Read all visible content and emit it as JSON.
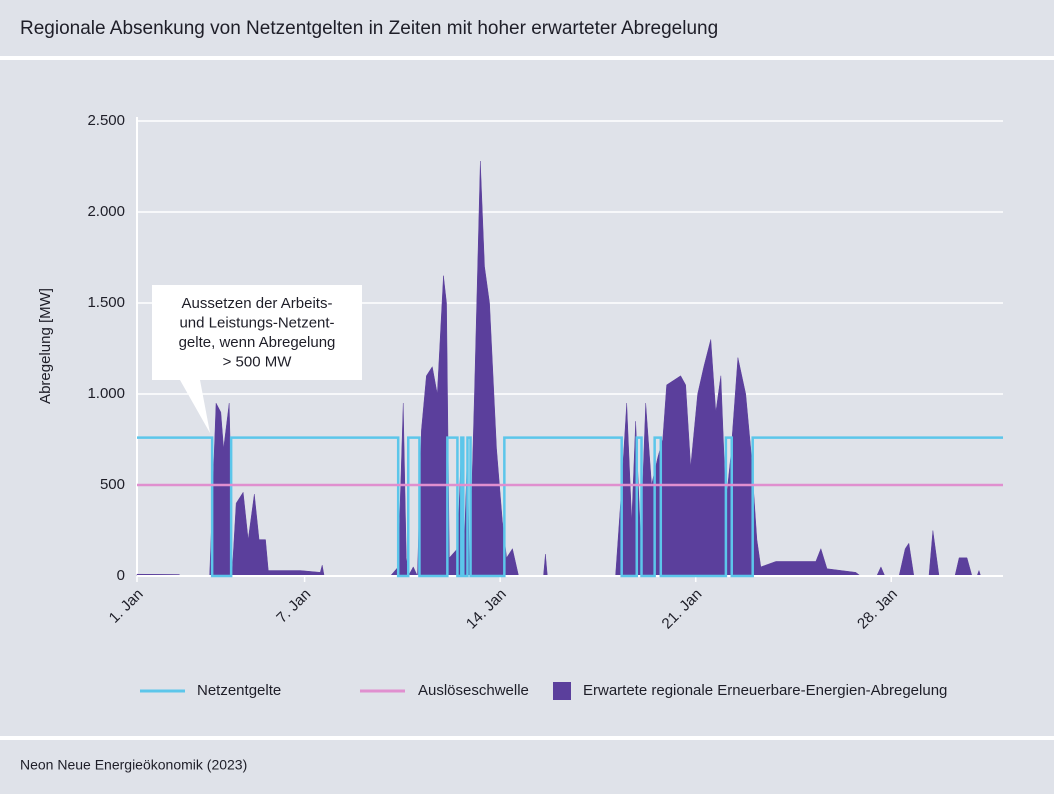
{
  "chart_data": {
    "type": "line",
    "title": "Regionale Absenkung von Netzentgelten in Zeiten mit hoher erwarteter Abregelung",
    "ylabel": "Abregelung [MW]",
    "source": "Neon Neue Energieökonomik (2023)",
    "annotation": [
      "Aussetzen der Arbeits-",
      "und Leistungs-Netzent-",
      "gelte, wenn Abregelung",
      "> 500 MW"
    ],
    "xlim": [
      0,
      31
    ],
    "xticks": [
      {
        "value": 0,
        "label": "1. Jan"
      },
      {
        "value": 6,
        "label": "7. Jan"
      },
      {
        "value": 13,
        "label": "14. Jan"
      },
      {
        "value": 20,
        "label": "21. Jan"
      },
      {
        "value": 27,
        "label": "28. Jan"
      }
    ],
    "ylim": [
      0,
      2500
    ],
    "yticks": [
      0,
      500,
      {
        "value": 1000,
        "label": "1.000"
      },
      {
        "value": 1500,
        "label": "1.500"
      },
      {
        "value": 2000,
        "label": "2.000"
      },
      {
        "value": 2500,
        "label": "2.500"
      }
    ],
    "grid": true,
    "legend": "bottom",
    "series": [
      {
        "name": "Netzentgelte",
        "type": "line",
        "color": "#5cc6ea",
        "x": [
          0,
          2.69,
          2.69,
          3.37,
          3.37,
          9.35,
          9.35,
          9.71,
          9.71,
          10.11,
          10.11,
          11.11,
          11.11,
          11.47,
          11.47,
          11.61,
          11.61,
          11.68,
          11.68,
          11.83,
          11.83,
          11.94,
          11.94,
          13.15,
          13.15,
          17.35,
          17.35,
          17.89,
          17.89,
          18.06,
          18.06,
          18.53,
          18.53,
          18.75,
          18.75,
          21.08,
          21.08,
          21.29,
          21.29,
          22.04,
          22.04,
          31
        ],
        "values": [
          760,
          760,
          0,
          0,
          760,
          760,
          0,
          0,
          760,
          760,
          0,
          0,
          760,
          760,
          0,
          0,
          760,
          760,
          0,
          0,
          760,
          760,
          0,
          0,
          760,
          760,
          0,
          0,
          760,
          760,
          0,
          0,
          760,
          760,
          0,
          0,
          760,
          760,
          0,
          0,
          760,
          760
        ]
      },
      {
        "name": "Auslöseschwelle",
        "type": "line",
        "color": "#e08fcf",
        "x": [
          0,
          31
        ],
        "values": [
          500,
          500
        ]
      },
      {
        "name": "Erwartete regionale Erneuerbare-Energien-Abregelung",
        "type": "area",
        "color": "#5b3f9c",
        "x": [
          0,
          1.5,
          1.6,
          2.6,
          2.83,
          3.0,
          3.1,
          3.3,
          3.37,
          3.4,
          3.55,
          3.8,
          3.98,
          4.2,
          4.37,
          4.6,
          4.7,
          5.85,
          6.56,
          6.63,
          6.7,
          9.07,
          9.35,
          9.53,
          9.64,
          9.71,
          9.89,
          10.04,
          10.18,
          10.36,
          10.57,
          10.75,
          10.97,
          11.08,
          11.18,
          11.47,
          11.61,
          11.68,
          11.83,
          11.9,
          12.08,
          12.29,
          12.44,
          12.62,
          12.87,
          13.08,
          13.23,
          13.44,
          13.66,
          14.55,
          14.62,
          14.69,
          17.13,
          17.31,
          17.53,
          17.71,
          17.85,
          18.03,
          18.21,
          18.42,
          18.64,
          18.82,
          18.96,
          19.46,
          19.64,
          19.82,
          20.07,
          20.29,
          20.54,
          20.72,
          20.9,
          21.08,
          21.25,
          21.51,
          21.79,
          21.97,
          22.19,
          22.33,
          22.87,
          24.3,
          24.48,
          24.7,
          25.73,
          25.9,
          26.48,
          26.63,
          26.77,
          27.28,
          27.5,
          27.63,
          27.81,
          28.35,
          28.49,
          28.71,
          29.28,
          29.43,
          29.71,
          29.89,
          30.07,
          30.14,
          30.2
        ],
        "values": [
          10,
          8,
          0,
          0,
          950,
          900,
          700,
          950,
          500,
          0,
          400,
          460,
          200,
          450,
          200,
          200,
          30,
          30,
          20,
          60,
          0,
          0,
          50,
          950,
          100,
          0,
          50,
          0,
          800,
          1100,
          1150,
          1000,
          1650,
          1500,
          100,
          150,
          700,
          0,
          700,
          0,
          1000,
          2280,
          1700,
          1500,
          700,
          300,
          100,
          150,
          0,
          0,
          120,
          0,
          0,
          400,
          950,
          300,
          850,
          200,
          950,
          500,
          650,
          750,
          1050,
          1100,
          1050,
          600,
          1000,
          1150,
          1300,
          900,
          1100,
          400,
          650,
          1200,
          1000,
          700,
          200,
          50,
          80,
          80,
          150,
          40,
          20,
          0,
          0,
          50,
          0,
          0,
          150,
          180,
          0,
          0,
          250,
          0,
          0,
          100,
          100,
          0,
          0,
          30,
          0
        ]
      }
    ]
  }
}
